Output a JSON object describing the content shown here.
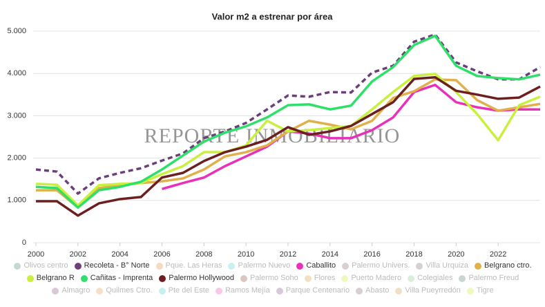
{
  "chart_data": {
    "type": "line",
    "title": "Valor m2 a estrenar por área",
    "annotation": "REPORTE INMOBILIARIO",
    "x": [
      2000,
      2001,
      2002,
      2003,
      2004,
      2005,
      2006,
      2007,
      2008,
      2009,
      2010,
      2011,
      2012,
      2013,
      2014,
      2015,
      2016,
      2017,
      2018,
      2019,
      2020,
      2021,
      2022,
      2023,
      2024
    ],
    "xlim": [
      2000,
      2024
    ],
    "xticks": [
      2000,
      2002,
      2004,
      2006,
      2008,
      2010,
      2012,
      2014,
      2016,
      2018,
      2020,
      2022
    ],
    "ylim": [
      0,
      5000
    ],
    "yticks": [
      0,
      {
        "value": 1000,
        "label": "1.000"
      },
      {
        "value": 2000,
        "label": "2.000"
      },
      {
        "value": 3000,
        "label": "3.000"
      },
      {
        "value": 4000,
        "label": "4.000"
      },
      {
        "value": 5000,
        "label": "5.000"
      }
    ],
    "grid": true,
    "legend": "bottom",
    "series": [
      {
        "name": "Olivos centro",
        "color": "#c8d8d0",
        "visible": false
      },
      {
        "name": "Recoleta - B° Norte",
        "color": "#6b3f7a",
        "dashed": true,
        "values": [
          1730,
          1680,
          1160,
          1520,
          1650,
          1760,
          1940,
          2110,
          2470,
          2630,
          2830,
          3150,
          3480,
          3450,
          3560,
          3550,
          4020,
          4180,
          4750,
          4920,
          4260,
          4050,
          3860,
          3860,
          4150
        ]
      },
      {
        "name": "Pque. Las Heras",
        "color": "#f3dcc0",
        "visible": false
      },
      {
        "name": "Palermo Nuevo",
        "color": "#c8f0f0",
        "visible": false
      },
      {
        "name": "Caballito",
        "color": "#e831b8",
        "values": [
          null,
          null,
          null,
          null,
          null,
          null,
          1270,
          1410,
          1540,
          1810,
          2040,
          2270,
          2630,
          2580,
          2470,
          2470,
          2660,
          2960,
          3560,
          3730,
          3320,
          3200,
          3120,
          3150,
          3150
        ]
      },
      {
        "name": "Palermo Univers.",
        "color": "#d8d0d0",
        "visible": false
      },
      {
        "name": "Villa Urquiza",
        "color": "#d8d0d0",
        "visible": false
      },
      {
        "name": "Belgrano ctro.",
        "color": "#e0b04a",
        "values": [
          1240,
          1240,
          830,
          1290,
          1360,
          1410,
          1450,
          1520,
          1730,
          2040,
          2140,
          2300,
          2630,
          2880,
          2790,
          2680,
          2880,
          3420,
          3580,
          3860,
          3840,
          3370,
          3120,
          3200,
          3280
        ]
      },
      {
        "name": "Belgrano R",
        "color": "#c8f03c",
        "values": [
          1390,
          1370,
          880,
          1360,
          1390,
          1410,
          1620,
          1810,
          2140,
          2140,
          2300,
          2880,
          2630,
          2660,
          2710,
          2760,
          3150,
          3560,
          3940,
          3990,
          3560,
          3040,
          2420,
          3250,
          3450
        ]
      },
      {
        "name": "Cañitas - Imprenta",
        "color": "#2ee06a",
        "values": [
          1320,
          1290,
          830,
          1240,
          1320,
          1440,
          1730,
          2060,
          2390,
          2600,
          2750,
          2960,
          3250,
          3270,
          3150,
          3240,
          3810,
          4150,
          4670,
          4890,
          4180,
          3940,
          3890,
          3860,
          3970
        ]
      },
      {
        "name": "Palermo Hollywood",
        "color": "#6b1f1f",
        "values": [
          980,
          980,
          640,
          930,
          1030,
          1080,
          1540,
          1650,
          1930,
          2140,
          2270,
          2430,
          2730,
          2550,
          2630,
          2760,
          3040,
          3320,
          3870,
          3910,
          3590,
          3500,
          3400,
          3430,
          3690
        ]
      },
      {
        "name": "Palermo Soho",
        "color": "#d8c8c0",
        "visible": false
      },
      {
        "name": "Flores",
        "color": "#f3e0c0",
        "visible": false
      },
      {
        "name": "Puerto Madero",
        "color": "#f0f8c0",
        "visible": false
      },
      {
        "name": "Colegiales",
        "color": "#d8f0d8",
        "visible": false
      },
      {
        "name": "Palermo Freud",
        "color": "#c8d8d0",
        "visible": false
      },
      {
        "name": "Almagro",
        "color": "#d8c8d8",
        "visible": false
      },
      {
        "name": "Quilmes Ctro.",
        "color": "#f8e0c8",
        "visible": false
      },
      {
        "name": "Pte del Este",
        "color": "#c8f0f0",
        "visible": false
      },
      {
        "name": "Ramos Mejía",
        "color": "#f8c8e8",
        "visible": false
      },
      {
        "name": "Parque Centenario",
        "color": "#d8c8d8",
        "visible": false
      },
      {
        "name": "Abasto",
        "color": "#d8d0d0",
        "visible": false
      },
      {
        "name": "Villa Pueyrredón",
        "color": "#f0e0c8",
        "visible": false
      },
      {
        "name": "Tigre",
        "color": "#f0f8c0",
        "visible": false
      }
    ]
  }
}
